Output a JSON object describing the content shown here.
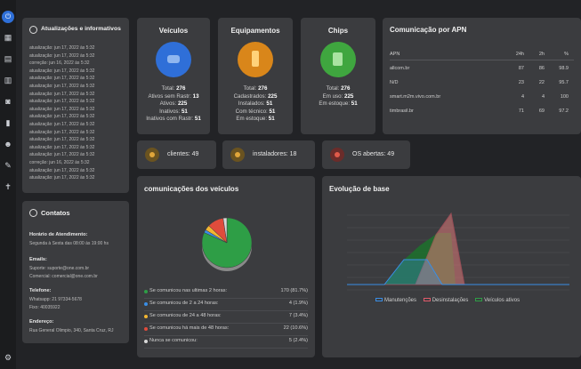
{
  "updates": {
    "title": "Atualizações e informativos",
    "items": [
      "atualização: jun 17, 2022 às 5:32",
      "atualização: jun 17, 2022 às 5:32",
      "correção: jun 16, 2022 às 5:32",
      "atualização: jun 17, 2022 às 5:32",
      "atualização: jun 17, 2022 às 5:32",
      "atualização: jun 17, 2022 às 5:32",
      "atualização: jun 17, 2022 às 5:32",
      "atualização: jun 17, 2022 às 5:32",
      "atualização: jun 17, 2022 às 5:32",
      "atualização: jun 17, 2022 às 5:32",
      "atualização: jun 17, 2022 às 5:32",
      "atualização: jun 17, 2022 às 5:32",
      "atualização: jun 17, 2022 às 5:32",
      "atualização: jun 17, 2022 às 5:32",
      "atualização: jun 17, 2022 às 5:32",
      "correção: jun 16, 2022 às 5:32",
      "atualização: jun 17, 2022 às 5:32",
      "atualização: jun 17, 2022 às 5:32"
    ]
  },
  "contacts": {
    "title": "Contatos",
    "hours_label": "Horário de Atendimento:",
    "hours": "Segunda à Sexta das 08:00 às 19:00 hs",
    "emails_label": "Emails:",
    "support": "Suporte: suporte@one.com.br",
    "commercial": "Comercial: comercial@one.com.br",
    "phone_label": "Telefone:",
    "whatsapp": "Whatsapp: 21 97334-5678",
    "fixed": "Fixo: 40035922",
    "address_label": "Endereço:",
    "address": "Rua General Olimpio, 340, Santa Cruz, RJ"
  },
  "vehicles": {
    "title": "Veículos",
    "stats": [
      {
        "label": "Total:",
        "value": "276"
      },
      {
        "label": "Ativos sem Rastr:",
        "value": "13"
      },
      {
        "label": "Ativos:",
        "value": "225"
      },
      {
        "label": "Inativos:",
        "value": "51"
      },
      {
        "label": "Inativos com Rastr:",
        "value": "51"
      }
    ]
  },
  "equipments": {
    "title": "Equipamentos",
    "stats": [
      {
        "label": "Total:",
        "value": "276"
      },
      {
        "label": "Cadastrados:",
        "value": "225"
      },
      {
        "label": "Instalados:",
        "value": "51"
      },
      {
        "label": "Com técnico:",
        "value": "51"
      },
      {
        "label": "Em estoque:",
        "value": "51"
      }
    ]
  },
  "chips": {
    "title": "Chips",
    "stats": [
      {
        "label": "Total:",
        "value": "276"
      },
      {
        "label": "Em uso:",
        "value": "225"
      },
      {
        "label": "Em estoque:",
        "value": "51"
      }
    ]
  },
  "apn": {
    "title": "Comunicação por APN",
    "headers": [
      "APN",
      "24h",
      "2h",
      "%"
    ],
    "rows": [
      [
        "allcom.br",
        "87",
        "86",
        "98.9"
      ],
      [
        "N/D",
        "23",
        "22",
        "95.7"
      ],
      [
        "smart.m2m.vivo.com.br",
        "4",
        "4",
        "100"
      ],
      [
        "timbrasil.br",
        "71",
        "69",
        "97.2"
      ]
    ]
  },
  "pills": {
    "clients": "clientes: 49",
    "installers": "instaladores: 18",
    "os": "OS abertas: 49"
  },
  "colors": {
    "vehicles": "#2f6fd8",
    "equipments": "#e08a1e",
    "chips": "#3fae3f",
    "green": "#2e9e46",
    "blue": "#3a8ee6",
    "yellow": "#f2b632",
    "red": "#e04c3c",
    "gray": "#d8d8d8"
  },
  "comm": {
    "title": "comunicações dos veículos",
    "legend": [
      {
        "label": "Se comunicou nas ultimas 2 horas:",
        "value": "170 (81.7%)",
        "color": "#2e9e46"
      },
      {
        "label": "Se comunicou de 2 a 24 horas:",
        "value": "4 (1.9%)",
        "color": "#3a8ee6"
      },
      {
        "label": "Se comunicou de 24 a 48 horas:",
        "value": "7 (3.4%)",
        "color": "#f2b632"
      },
      {
        "label": "Se comunicou há mais de 48 horas:",
        "value": "22 (10.6%)",
        "color": "#e04c3c"
      },
      {
        "label": "Nunca se comunicou:",
        "value": "5 (2.4%)",
        "color": "#d8d8d8"
      }
    ]
  },
  "chart_data": {
    "type": "pie",
    "title": "comunicações dos veículos",
    "categories": [
      "Se comunicou nas ultimas 2 horas:",
      "Se comunicou de 2 a 24 horas:",
      "Se comunicou de 24 a 48 horas:",
      "Se comunicou há mais de 48 horas:",
      "Nunca se comunicou:"
    ],
    "values": [
      170,
      4,
      7,
      22,
      5
    ]
  },
  "base": {
    "title": "Evolução de base",
    "legend": [
      "Manutenções",
      "Desinstalações",
      "Veículos ativos"
    ]
  }
}
